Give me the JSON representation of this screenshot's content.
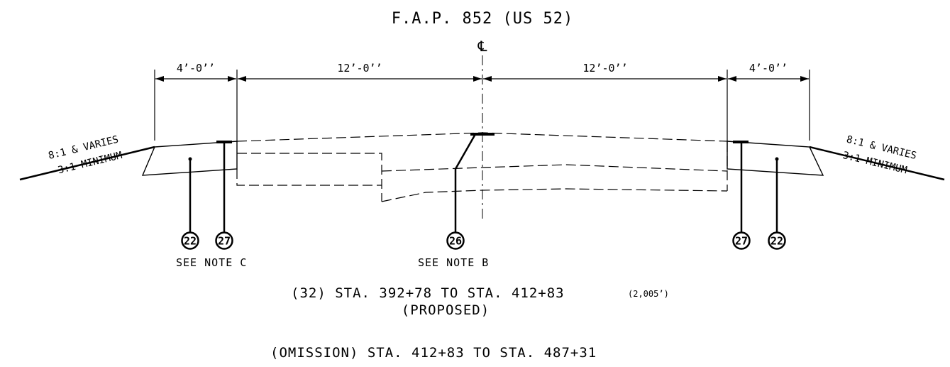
{
  "drawing": {
    "title": "F.A.P. 852 (US 52)",
    "centerline_symbol": "℄",
    "dimensions": {
      "left_shoulder": "4’-0’’",
      "left_lane": "12’-0’’",
      "right_lane": "12’-0’’",
      "right_shoulder": "4’-0’’"
    },
    "slopes": {
      "left_upper": "8:1 & VARIES",
      "left_lower": "3:1 MINIMUM",
      "right_upper": "8:1 & VARIES",
      "right_lower": "3:1 MINIMUM"
    },
    "callouts": {
      "left_outer": "22",
      "left_inner": "27",
      "center": "26",
      "right_inner": "27",
      "right_outer": "22"
    },
    "notes": {
      "left": "SEE NOTE C",
      "center": "SEE NOTE B"
    },
    "stations": {
      "line1_main": "(32)  STA. 392+78 TO STA. 412+83",
      "line1_length": "(2,005’)",
      "line2": "(PROPOSED)",
      "line3": "(OMISSION)  STA. 412+83 TO STA. 487+31"
    }
  }
}
